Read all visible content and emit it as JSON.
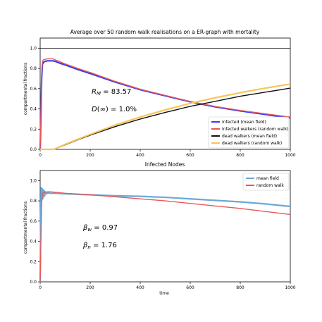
{
  "chart_data": [
    {
      "type": "line",
      "title": "Average over 50 random walk realisations on a ER-graph with mortality",
      "xlabel": "",
      "ylabel": "compartmental fractions",
      "xlim": [
        0,
        1000
      ],
      "ylim": [
        0,
        1.1
      ],
      "xticks": [
        0,
        200,
        400,
        600,
        800,
        1000
      ],
      "yticks": [
        0.0,
        0.2,
        0.4,
        0.6,
        0.8,
        1.0
      ],
      "xtick_labels": [
        "0",
        "200",
        "400",
        "600",
        "800",
        "1000"
      ],
      "ytick_labels": [
        "0.0",
        "0.2",
        "0.4",
        "0.6",
        "0.8",
        "1.0"
      ],
      "reference_line": 1.0,
      "legend_position": "lower-right",
      "grid": false,
      "annotations": [
        "R_M = 83.57",
        "D(∞) = 1.0%"
      ],
      "series": [
        {
          "name": "infected (mean field)",
          "color": "#3b3bf0",
          "x": [
            0,
            3,
            6,
            9,
            13,
            20,
            30,
            40,
            50,
            60,
            80,
            100,
            150,
            200,
            300,
            400,
            500,
            600,
            700,
            800,
            900,
            1000
          ],
          "y": [
            0.0,
            0.3,
            0.7,
            0.84,
            0.86,
            0.87,
            0.875,
            0.875,
            0.875,
            0.87,
            0.85,
            0.835,
            0.79,
            0.75,
            0.665,
            0.59,
            0.53,
            0.47,
            0.42,
            0.38,
            0.345,
            0.31
          ]
        },
        {
          "name": "infected walkers  (random walk)",
          "color": "#e85858",
          "x": [
            0,
            3,
            6,
            9,
            13,
            20,
            30,
            40,
            50,
            60,
            80,
            100,
            150,
            200,
            300,
            400,
            500,
            600,
            700,
            800,
            900,
            1000
          ],
          "y": [
            0.0,
            0.35,
            0.75,
            0.87,
            0.885,
            0.89,
            0.895,
            0.895,
            0.895,
            0.885,
            0.865,
            0.845,
            0.8,
            0.76,
            0.672,
            0.595,
            0.533,
            0.473,
            0.424,
            0.385,
            0.352,
            0.32
          ]
        },
        {
          "name": "dead walkers (mean field)",
          "color": "#111111",
          "x": [
            0,
            50,
            60,
            80,
            100,
            150,
            200,
            300,
            400,
            500,
            600,
            700,
            800,
            900,
            1000
          ],
          "y": [
            0.0,
            0.0,
            0.005,
            0.025,
            0.045,
            0.095,
            0.14,
            0.225,
            0.3,
            0.365,
            0.425,
            0.475,
            0.525,
            0.565,
            0.605
          ]
        },
        {
          "name": "dead walkers (random walk)",
          "color": "#f7c55a",
          "x": [
            0,
            50,
            60,
            80,
            100,
            150,
            200,
            300,
            400,
            500,
            600,
            700,
            800,
            900,
            1000
          ],
          "y": [
            0.0,
            0.0,
            0.006,
            0.028,
            0.05,
            0.1,
            0.148,
            0.24,
            0.32,
            0.39,
            0.455,
            0.51,
            0.56,
            0.605,
            0.645
          ]
        }
      ]
    },
    {
      "type": "line",
      "title": "Infected Nodes",
      "xlabel": "time",
      "ylabel": "compartmental fractions",
      "xlim": [
        0,
        1000
      ],
      "ylim": [
        0,
        1.1
      ],
      "xticks": [
        0,
        200,
        400,
        600,
        800,
        1000
      ],
      "yticks": [
        0.0,
        0.2,
        0.4,
        0.6,
        0.8,
        1.0
      ],
      "xtick_labels": [
        "0",
        "200",
        "400",
        "600",
        "800",
        "1000"
      ],
      "ytick_labels": [
        "0.0",
        "0.2",
        "0.4",
        "0.6",
        "0.8",
        "1.0"
      ],
      "legend_position": "top-right",
      "grid": false,
      "annotations": [
        "β_w = 0.97",
        "β_n = 1.76"
      ],
      "series": [
        {
          "name": "mean field",
          "color": "#6aa8d8",
          "x": [
            0,
            2,
            4,
            6,
            8,
            10,
            12,
            14,
            16,
            18,
            20,
            25,
            30,
            40,
            60,
            100,
            200,
            300,
            400,
            500,
            600,
            700,
            800,
            900,
            1000
          ],
          "y": [
            0.0,
            0.55,
            0.93,
            0.8,
            0.92,
            0.82,
            0.91,
            0.84,
            0.9,
            0.85,
            0.89,
            0.87,
            0.88,
            0.875,
            0.875,
            0.87,
            0.86,
            0.85,
            0.845,
            0.835,
            0.82,
            0.805,
            0.79,
            0.77,
            0.745
          ]
        },
        {
          "name": "random walk",
          "color": "#e85858",
          "x": [
            0,
            3,
            6,
            9,
            12,
            20,
            30,
            40,
            60,
            100,
            200,
            300,
            400,
            500,
            600,
            700,
            800,
            900,
            1000
          ],
          "y": [
            0.0,
            0.4,
            0.8,
            0.87,
            0.88,
            0.885,
            0.89,
            0.89,
            0.885,
            0.875,
            0.86,
            0.84,
            0.82,
            0.8,
            0.775,
            0.75,
            0.725,
            0.695,
            0.665
          ]
        }
      ]
    }
  ]
}
